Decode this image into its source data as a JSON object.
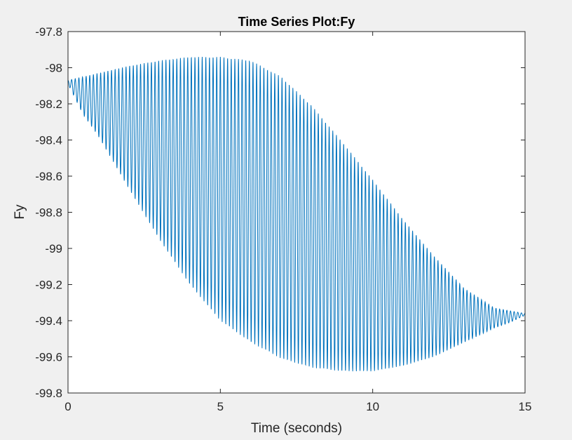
{
  "chart_data": {
    "type": "line",
    "title": "Time Series Plot:Fy",
    "xlabel": "Time (seconds)",
    "ylabel": "Fy",
    "xlim": [
      0,
      15
    ],
    "ylim": [
      -99.8,
      -97.8
    ],
    "x_ticks": [
      "0",
      "5",
      "10",
      "15"
    ],
    "y_ticks": [
      "-97.8",
      "-98",
      "-98.2",
      "-98.4",
      "-98.6",
      "-98.8",
      "-99",
      "-99.2",
      "-99.4",
      "-99.6",
      "-99.8"
    ],
    "grid": false,
    "legend": "none",
    "series": [
      {
        "color": "#0072bd",
        "oscillation_frequency_hz": 8.4,
        "upper_envelope": {
          "t": [
            0,
            1,
            2,
            3,
            4,
            4.5,
            5,
            6,
            7,
            8,
            9,
            10,
            11,
            12,
            13,
            14,
            15
          ],
          "y": [
            -98.07,
            -98.03,
            -97.99,
            -97.96,
            -97.94,
            -97.94,
            -97.94,
            -97.96,
            -98.05,
            -98.21,
            -98.41,
            -98.62,
            -98.84,
            -99.04,
            -99.22,
            -99.33,
            -99.36
          ]
        },
        "lower_envelope": {
          "t": [
            0,
            0.5,
            1,
            2,
            3,
            4,
            5,
            6,
            7,
            8,
            9,
            9.5,
            10,
            11,
            12,
            13,
            14,
            14.5,
            15
          ],
          "y": [
            -98.09,
            -98.26,
            -98.38,
            -98.67,
            -98.95,
            -99.2,
            -99.4,
            -99.52,
            -99.61,
            -99.66,
            -99.68,
            -99.68,
            -99.68,
            -99.65,
            -99.6,
            -99.52,
            -99.44,
            -99.41,
            -99.37
          ]
        }
      }
    ]
  }
}
